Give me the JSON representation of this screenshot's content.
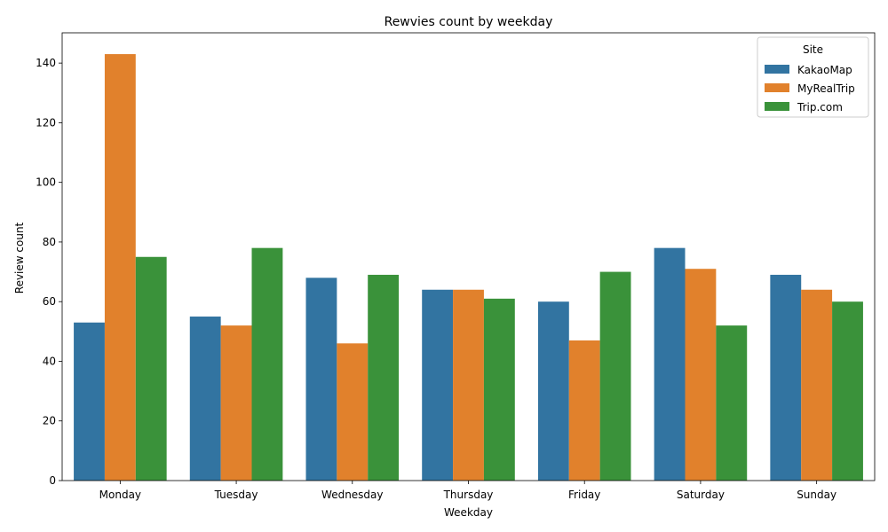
{
  "chart_data": {
    "type": "bar",
    "title": "Rewvies count by weekday",
    "xlabel": "Weekday",
    "ylabel": "Review count",
    "categories": [
      "Monday",
      "Tuesday",
      "Wednesday",
      "Thursday",
      "Friday",
      "Saturday",
      "Sunday"
    ],
    "series": [
      {
        "name": "KakaoMap",
        "color": "#3274a1",
        "values": [
          53,
          55,
          68,
          64,
          60,
          78,
          69
        ]
      },
      {
        "name": "MyRealTrip",
        "color": "#e1812c",
        "values": [
          143,
          52,
          46,
          64,
          47,
          71,
          64
        ]
      },
      {
        "name": "Trip.com",
        "color": "#3a923a",
        "values": [
          75,
          78,
          69,
          61,
          70,
          52,
          60
        ]
      }
    ],
    "ylim": [
      0,
      150.15
    ],
    "yticks": [
      0,
      20,
      40,
      60,
      80,
      100,
      120,
      140
    ],
    "legend": {
      "title": "Site",
      "position": "top-right"
    },
    "grid": false
  }
}
